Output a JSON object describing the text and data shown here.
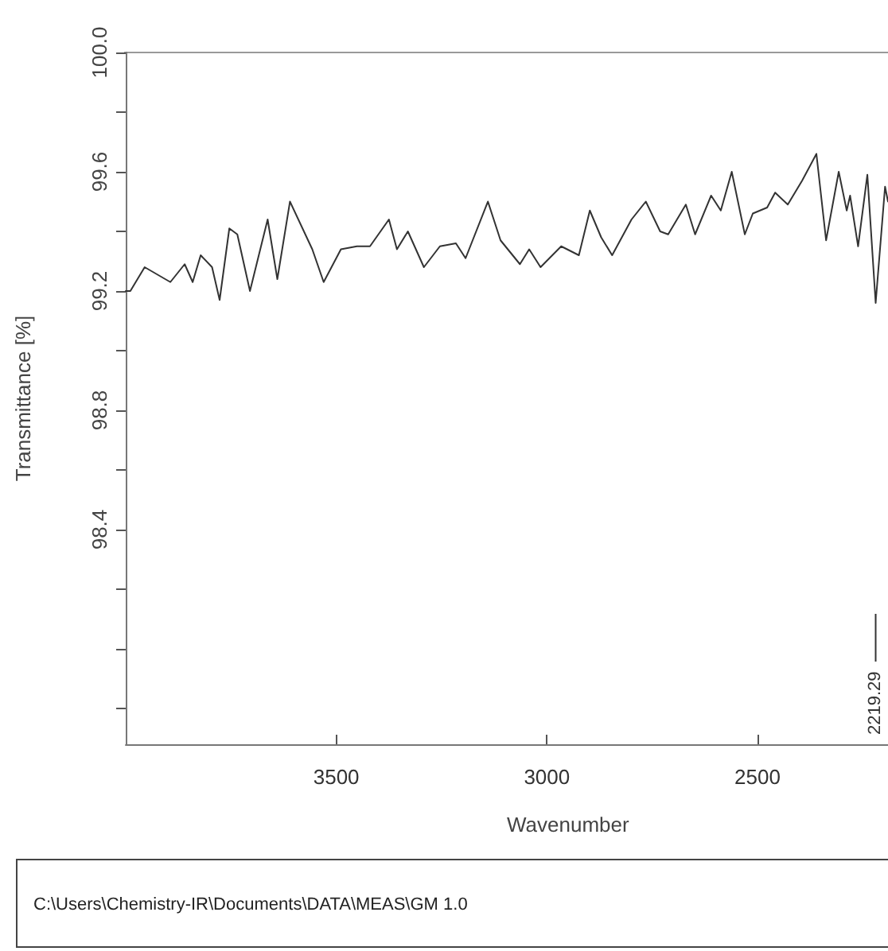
{
  "chart_data": {
    "type": "line",
    "xlabel": "Wavenumber",
    "ylabel": "Transmittance [%]",
    "xlim": [
      4000,
      2190
    ],
    "xticks": [
      3500,
      3000,
      2500
    ],
    "ylim": [
      97.68,
      100
    ],
    "yticks": [
      {
        "value": 100,
        "label": "100.0"
      },
      {
        "value": 99.8,
        "label": null
      },
      99.6,
      {
        "value": 99.4,
        "label": null
      },
      99.2,
      {
        "value": 99.0,
        "label": null
      },
      98.8,
      {
        "value": 98.6,
        "label": null
      },
      98.4,
      {
        "value": 98.2,
        "label": null
      },
      {
        "value": 98.0,
        "label": null
      },
      {
        "value": 97.8,
        "label": null
      }
    ],
    "grid": false,
    "marker": "none",
    "line_style": "solid",
    "series": [
      {
        "color": "#333333",
        "x": [
          4000,
          3989,
          3955,
          3894,
          3860,
          3841,
          3822,
          3795,
          3777,
          3754,
          3735,
          3705,
          3663,
          3640,
          3610,
          3557,
          3530,
          3489,
          3451,
          3420,
          3375,
          3356,
          3330,
          3292,
          3254,
          3216,
          3193,
          3140,
          3110,
          3064,
          3042,
          3015,
          2966,
          2924,
          2898,
          2871,
          2845,
          2799,
          2765,
          2731,
          2712,
          2670,
          2648,
          2610,
          2587,
          2561,
          2530,
          2511,
          2477,
          2458,
          2428,
          2394,
          2360,
          2337,
          2307,
          2288,
          2280,
          2261,
          2239,
          2219.29,
          2197,
          2190
        ],
        "values": [
          99.2,
          99.2,
          99.28,
          99.23,
          99.29,
          99.23,
          99.32,
          99.28,
          99.17,
          99.41,
          99.39,
          99.2,
          99.44,
          99.24,
          99.5,
          99.34,
          99.23,
          99.34,
          99.35,
          99.35,
          99.44,
          99.34,
          99.4,
          99.28,
          99.35,
          99.36,
          99.31,
          99.5,
          99.37,
          99.29,
          99.34,
          99.28,
          99.35,
          99.32,
          99.47,
          99.38,
          99.32,
          99.44,
          99.5,
          99.4,
          99.39,
          99.49,
          99.39,
          99.52,
          99.47,
          99.6,
          99.39,
          99.46,
          99.48,
          99.53,
          99.49,
          99.57,
          99.66,
          99.37,
          99.6,
          99.47,
          99.52,
          99.35,
          99.59,
          99.16,
          99.55,
          99.5
        ]
      }
    ],
    "annotations": [
      {
        "text": "2219.29",
        "x": 2219.29
      },
      "C:\\Users\\Chemistry-IR\\Documents\\DATA\\MEAS\\GM 1.0"
    ]
  }
}
